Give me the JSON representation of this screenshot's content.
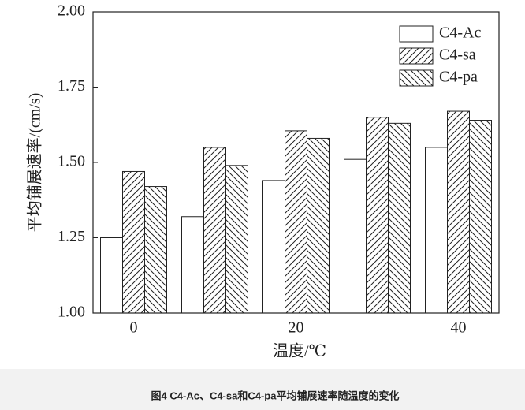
{
  "chart_data": {
    "type": "bar",
    "caption": "图4   C4-Ac、C4-sa和C4-pa平均铺展速率随温度的变化",
    "xlabel": "温度/℃",
    "ylabel": "平均铺展速率/(cm/s)",
    "categories": [
      0,
      null,
      20,
      null,
      40
    ],
    "series": [
      {
        "name": "C4-Ac",
        "color": "#ffffff",
        "hatch": "none",
        "values": [
          1.25,
          1.32,
          1.44,
          1.51,
          1.55
        ]
      },
      {
        "name": "C4-sa",
        "color": "#ffffff",
        "hatch": "forward",
        "values": [
          1.47,
          1.55,
          1.605,
          1.65,
          1.67
        ]
      },
      {
        "name": "C4-pa",
        "color": "#ffffff",
        "hatch": "backward",
        "values": [
          1.42,
          1.49,
          1.58,
          1.63,
          1.64
        ]
      }
    ],
    "ylim": [
      1.0,
      2.0
    ],
    "yticks": [
      {
        "value": 1.0,
        "label": "1.00"
      },
      {
        "value": 1.25,
        "label": "1.25"
      },
      {
        "value": 1.5,
        "label": "1.50"
      },
      {
        "value": 1.75,
        "label": "1.75"
      },
      {
        "value": 2.0,
        "label": "2.00"
      }
    ],
    "legend": "upper right"
  }
}
